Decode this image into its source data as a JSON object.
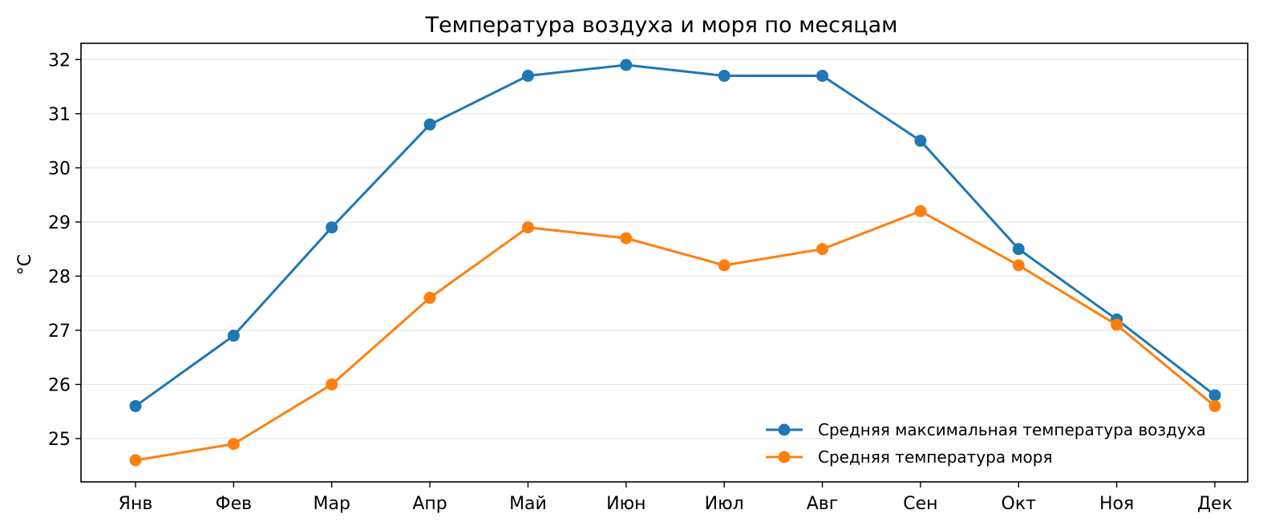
{
  "chart_data": {
    "type": "line",
    "title": "Температура воздуха и моря по месяцам",
    "xlabel": "",
    "ylabel": "°C",
    "categories": [
      "Янв",
      "Фев",
      "Мар",
      "Апр",
      "Май",
      "Июн",
      "Июл",
      "Авг",
      "Сен",
      "Окт",
      "Ноя",
      "Дек"
    ],
    "yticks": [
      25,
      26,
      27,
      28,
      29,
      30,
      31,
      32
    ],
    "ylim": [
      24.2,
      32.3
    ],
    "grid": "horizontal",
    "legend_position": "lower-right",
    "series": [
      {
        "name": "Средняя максимальная температура воздуха",
        "color": "#1f77b4",
        "values": [
          25.6,
          26.9,
          28.9,
          30.8,
          31.7,
          31.9,
          31.7,
          31.7,
          30.5,
          28.5,
          27.2,
          25.8
        ]
      },
      {
        "name": "Средняя температура моря",
        "color": "#ff7f0e",
        "values": [
          24.6,
          24.9,
          26.0,
          27.6,
          28.9,
          28.7,
          28.2,
          28.5,
          29.2,
          28.2,
          27.1,
          25.6
        ]
      }
    ]
  }
}
